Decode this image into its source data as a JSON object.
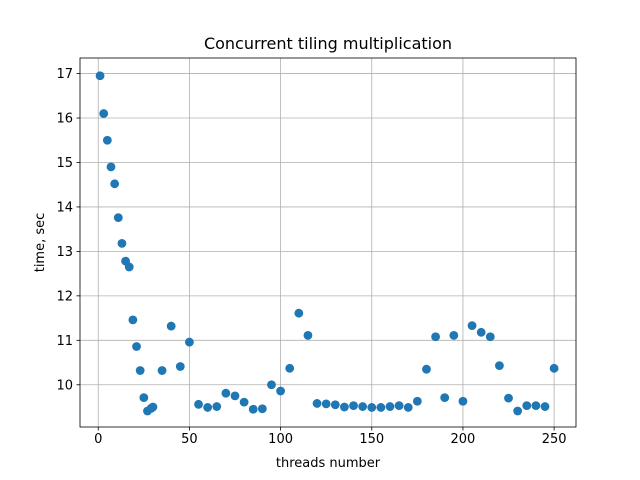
{
  "chart_data": {
    "type": "scatter",
    "title": "Concurrent tiling multiplication",
    "xlabel": "threads number",
    "ylabel": "time, sec",
    "xlim": [
      -10,
      262
    ],
    "ylim": [
      9.05,
      17.35
    ],
    "x_ticks": [
      0,
      50,
      100,
      150,
      200,
      250
    ],
    "y_ticks": [
      10,
      11,
      12,
      13,
      14,
      15,
      16,
      17
    ],
    "grid": true,
    "marker_color": "#1f77b4",
    "series": [
      {
        "points": [
          [
            1,
            16.95
          ],
          [
            3,
            16.1
          ],
          [
            5,
            15.5
          ],
          [
            7,
            14.9
          ],
          [
            9,
            14.52
          ],
          [
            11,
            13.76
          ],
          [
            13,
            13.18
          ],
          [
            15,
            12.78
          ],
          [
            17,
            12.65
          ],
          [
            19,
            11.46
          ],
          [
            21,
            10.86
          ],
          [
            23,
            10.32
          ],
          [
            25,
            9.71
          ],
          [
            27,
            9.41
          ],
          [
            29,
            9.47
          ],
          [
            30,
            9.5
          ],
          [
            35,
            10.32
          ],
          [
            40,
            11.32
          ],
          [
            45,
            10.41
          ],
          [
            50,
            10.96
          ],
          [
            55,
            9.56
          ],
          [
            60,
            9.49
          ],
          [
            65,
            9.51
          ],
          [
            70,
            9.81
          ],
          [
            75,
            9.75
          ],
          [
            80,
            9.61
          ],
          [
            85,
            9.45
          ],
          [
            90,
            9.46
          ],
          [
            95,
            10.0
          ],
          [
            100,
            9.86
          ],
          [
            105,
            10.37
          ],
          [
            110,
            11.61
          ],
          [
            115,
            11.11
          ],
          [
            120,
            9.58
          ],
          [
            125,
            9.57
          ],
          [
            130,
            9.55
          ],
          [
            135,
            9.5
          ],
          [
            140,
            9.53
          ],
          [
            145,
            9.51
          ],
          [
            150,
            9.49
          ],
          [
            155,
            9.49
          ],
          [
            160,
            9.51
          ],
          [
            165,
            9.53
          ],
          [
            170,
            9.49
          ],
          [
            175,
            9.63
          ],
          [
            180,
            10.35
          ],
          [
            185,
            11.08
          ],
          [
            190,
            9.71
          ],
          [
            195,
            11.11
          ],
          [
            200,
            9.63
          ],
          [
            205,
            11.33
          ],
          [
            210,
            11.18
          ],
          [
            215,
            11.08
          ],
          [
            220,
            10.43
          ],
          [
            225,
            9.7
          ],
          [
            230,
            9.41
          ],
          [
            235,
            9.53
          ],
          [
            240,
            9.53
          ],
          [
            245,
            9.51
          ],
          [
            250,
            10.37
          ]
        ]
      }
    ]
  }
}
